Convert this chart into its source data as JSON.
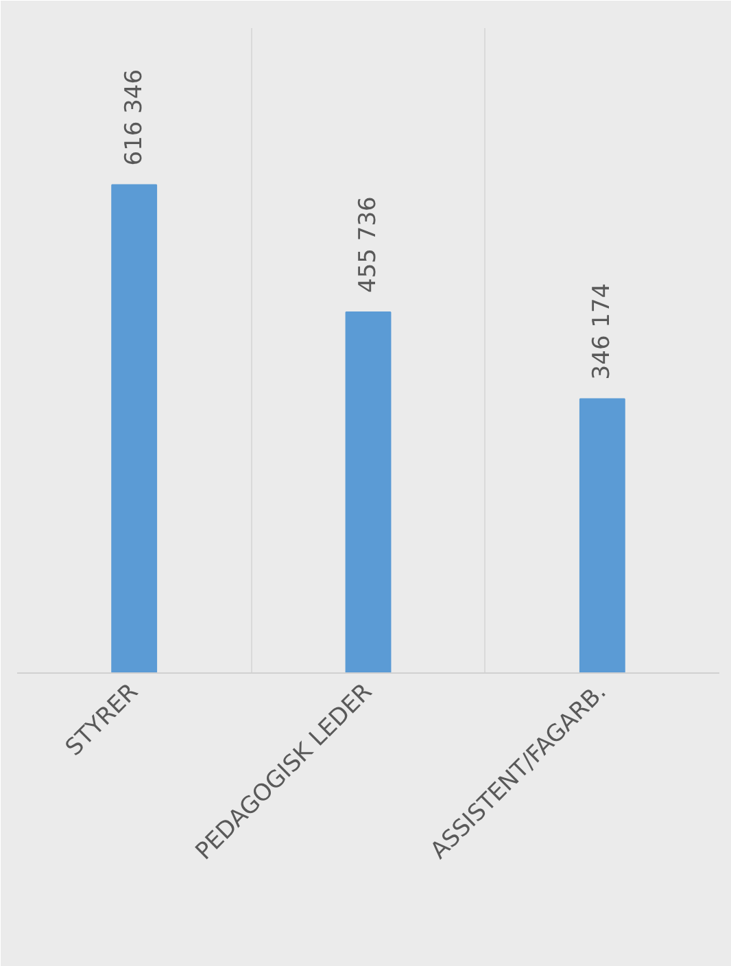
{
  "chart_data": {
    "type": "bar",
    "categories": [
      "STYRER",
      "PEDAGOGISK LEDER",
      "ASSISTENT/FAGARB."
    ],
    "values": [
      616346,
      455736,
      346174
    ],
    "color": "#5b9bd5",
    "value_labels": [
      "616 346",
      "455 736",
      "346 174"
    ],
    "grid": "x"
  }
}
